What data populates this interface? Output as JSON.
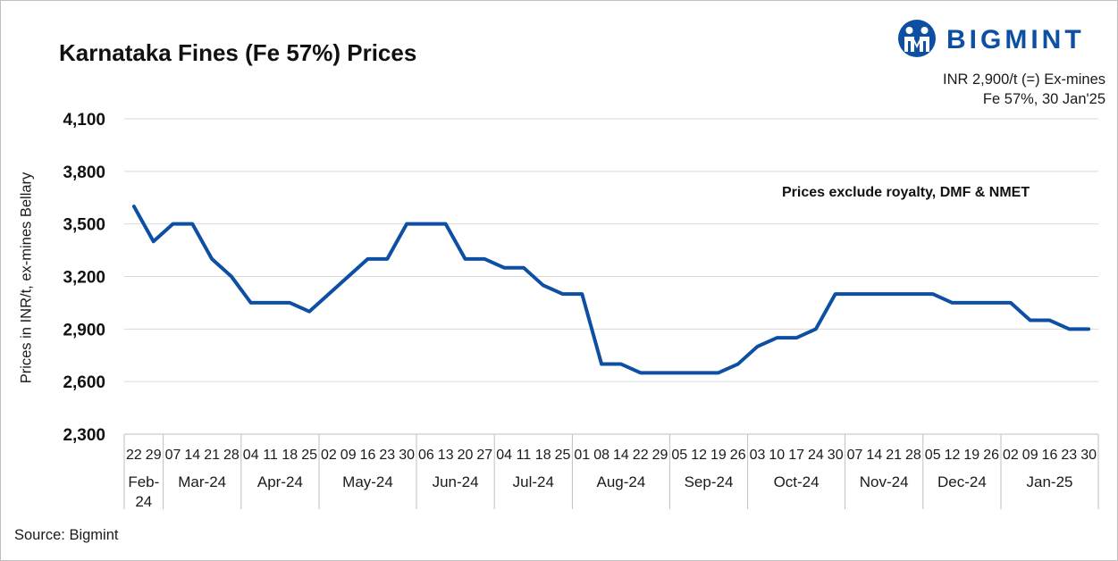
{
  "header": {
    "title": "Karnataka Fines (Fe 57%) Prices",
    "brand": "BIGMINT",
    "info_line1": "INR 2,900/t (=) Ex-mines",
    "info_line2": "Fe 57%, 30 Jan'25"
  },
  "note": "Prices exclude royalty, DMF & NMET",
  "source": "Source: Bigmint",
  "colors": {
    "line": "#0d4fa3",
    "brand": "#0d4fa3",
    "grid": "#d9d9d9"
  },
  "icons": {
    "logo": "bigmint-logo-icon"
  },
  "chart_data": {
    "type": "line",
    "title": "Karnataka Fines (Fe 57%) Prices",
    "ylabel": "Prices in INR/t, ex-mines Bellary",
    "ylim": [
      2300,
      4100
    ],
    "yticks": [
      2300,
      2600,
      2900,
      3200,
      3500,
      3800,
      4100
    ],
    "ytick_labels": [
      "2,300",
      "2,600",
      "2,900",
      "3,200",
      "3,500",
      "3,800",
      "4,100"
    ],
    "grid": "horizontal",
    "x": [
      "22",
      "29",
      "07",
      "14",
      "21",
      "28",
      "04",
      "11",
      "18",
      "25",
      "02",
      "09",
      "16",
      "23",
      "30",
      "06",
      "13",
      "20",
      "27",
      "04",
      "11",
      "18",
      "25",
      "01",
      "08",
      "14",
      "22",
      "29",
      "05",
      "12",
      "19",
      "26",
      "03",
      "10",
      "17",
      "24",
      "30",
      "07",
      "14",
      "21",
      "28",
      "05",
      "12",
      "19",
      "26",
      "02",
      "09",
      "16",
      "23",
      "30"
    ],
    "months": [
      {
        "label": "Feb-\n24",
        "count": 2
      },
      {
        "label": "Mar-24",
        "count": 4
      },
      {
        "label": "Apr-24",
        "count": 4
      },
      {
        "label": "May-24",
        "count": 5
      },
      {
        "label": "Jun-24",
        "count": 4
      },
      {
        "label": "Jul-24",
        "count": 4
      },
      {
        "label": "Aug-24",
        "count": 5
      },
      {
        "label": "Sep-24",
        "count": 4
      },
      {
        "label": "Oct-24",
        "count": 5
      },
      {
        "label": "Nov-24",
        "count": 4
      },
      {
        "label": "Dec-24",
        "count": 4
      },
      {
        "label": "Jan-25",
        "count": 5
      }
    ],
    "series": [
      {
        "values": [
          3600,
          3400,
          3500,
          3500,
          3300,
          3200,
          3050,
          3050,
          3050,
          3000,
          3100,
          3200,
          3300,
          3300,
          3500,
          3500,
          3500,
          3300,
          3300,
          3250,
          3250,
          3150,
          3100,
          3100,
          2700,
          2700,
          2650,
          2650,
          2650,
          2650,
          2650,
          2700,
          2800,
          2850,
          2850,
          2900,
          3100,
          3100,
          3100,
          3100,
          3100,
          3100,
          3050,
          3050,
          3050,
          3050,
          2950,
          2950,
          2900,
          2900
        ]
      }
    ]
  }
}
